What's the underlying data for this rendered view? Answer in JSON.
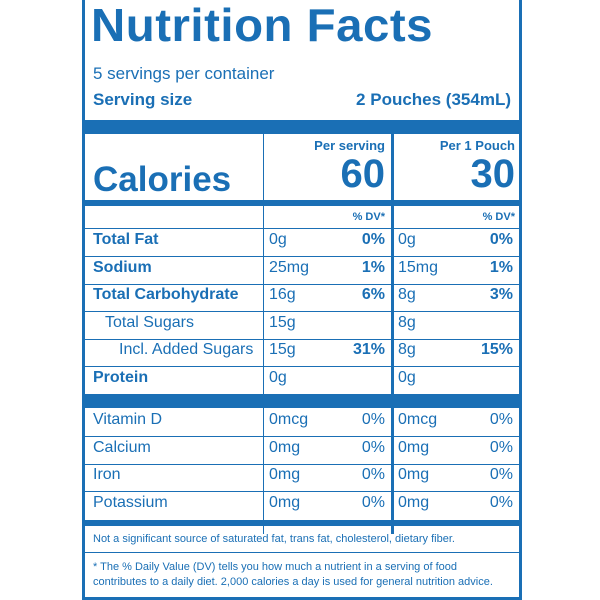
{
  "title": "Nutrition Facts",
  "servings_per_container": "5 servings per container",
  "serving_size_label": "Serving size",
  "serving_size_value": "2 Pouches (354mL)",
  "calories_label": "Calories",
  "columns": [
    {
      "header": "Per serving",
      "calories": "60",
      "dv_header": "% DV*"
    },
    {
      "header": "Per 1 Pouch",
      "calories": "30",
      "dv_header": "% DV*"
    }
  ],
  "nutrients": [
    {
      "name": "Total Fat",
      "bold": true,
      "indent": 0,
      "c1_amount": "0g",
      "c1_dv": "0%",
      "c2_amount": "0g",
      "c2_dv": "0%"
    },
    {
      "name": "Sodium",
      "bold": true,
      "indent": 0,
      "c1_amount": "25mg",
      "c1_dv": "1%",
      "c2_amount": "15mg",
      "c2_dv": "1%"
    },
    {
      "name": "Total Carbohydrate",
      "bold": true,
      "indent": 0,
      "c1_amount": "16g",
      "c1_dv": "6%",
      "c2_amount": "8g",
      "c2_dv": "3%"
    },
    {
      "name": "Total Sugars",
      "bold": false,
      "indent": 1,
      "c1_amount": "15g",
      "c1_dv": "",
      "c2_amount": "8g",
      "c2_dv": ""
    },
    {
      "name": "Incl. Added Sugars",
      "bold": false,
      "indent": 2,
      "c1_amount": "15g",
      "c1_dv": "31%",
      "c2_amount": "8g",
      "c2_dv": "15%"
    },
    {
      "name": "Protein",
      "bold": true,
      "indent": 0,
      "c1_amount": "0g",
      "c1_dv": "",
      "c2_amount": "0g",
      "c2_dv": ""
    }
  ],
  "vitamins": [
    {
      "name": "Vitamin D",
      "c1_amount": "0mcg",
      "c1_dv": "0%",
      "c2_amount": "0mcg",
      "c2_dv": "0%"
    },
    {
      "name": "Calcium",
      "c1_amount": "0mg",
      "c1_dv": "0%",
      "c2_amount": "0mg",
      "c2_dv": "0%"
    },
    {
      "name": "Iron",
      "c1_amount": "0mg",
      "c1_dv": "0%",
      "c2_amount": "0mg",
      "c2_dv": "0%"
    },
    {
      "name": "Potassium",
      "c1_amount": "0mg",
      "c1_dv": "0%",
      "c2_amount": "0mg",
      "c2_dv": "0%"
    }
  ],
  "footnote_insignificant": "Not a significant source of saturated fat, trans fat, cholesterol, dietary fiber.",
  "footnote_dv": "* The % Daily Value (DV) tells you how much a nutrient in a serving of food contributes to a daily diet. 2,000 calories a day is used for general nutrition advice.",
  "colors": {
    "label_blue": "#1a6fb5",
    "background": "#ffffff"
  }
}
